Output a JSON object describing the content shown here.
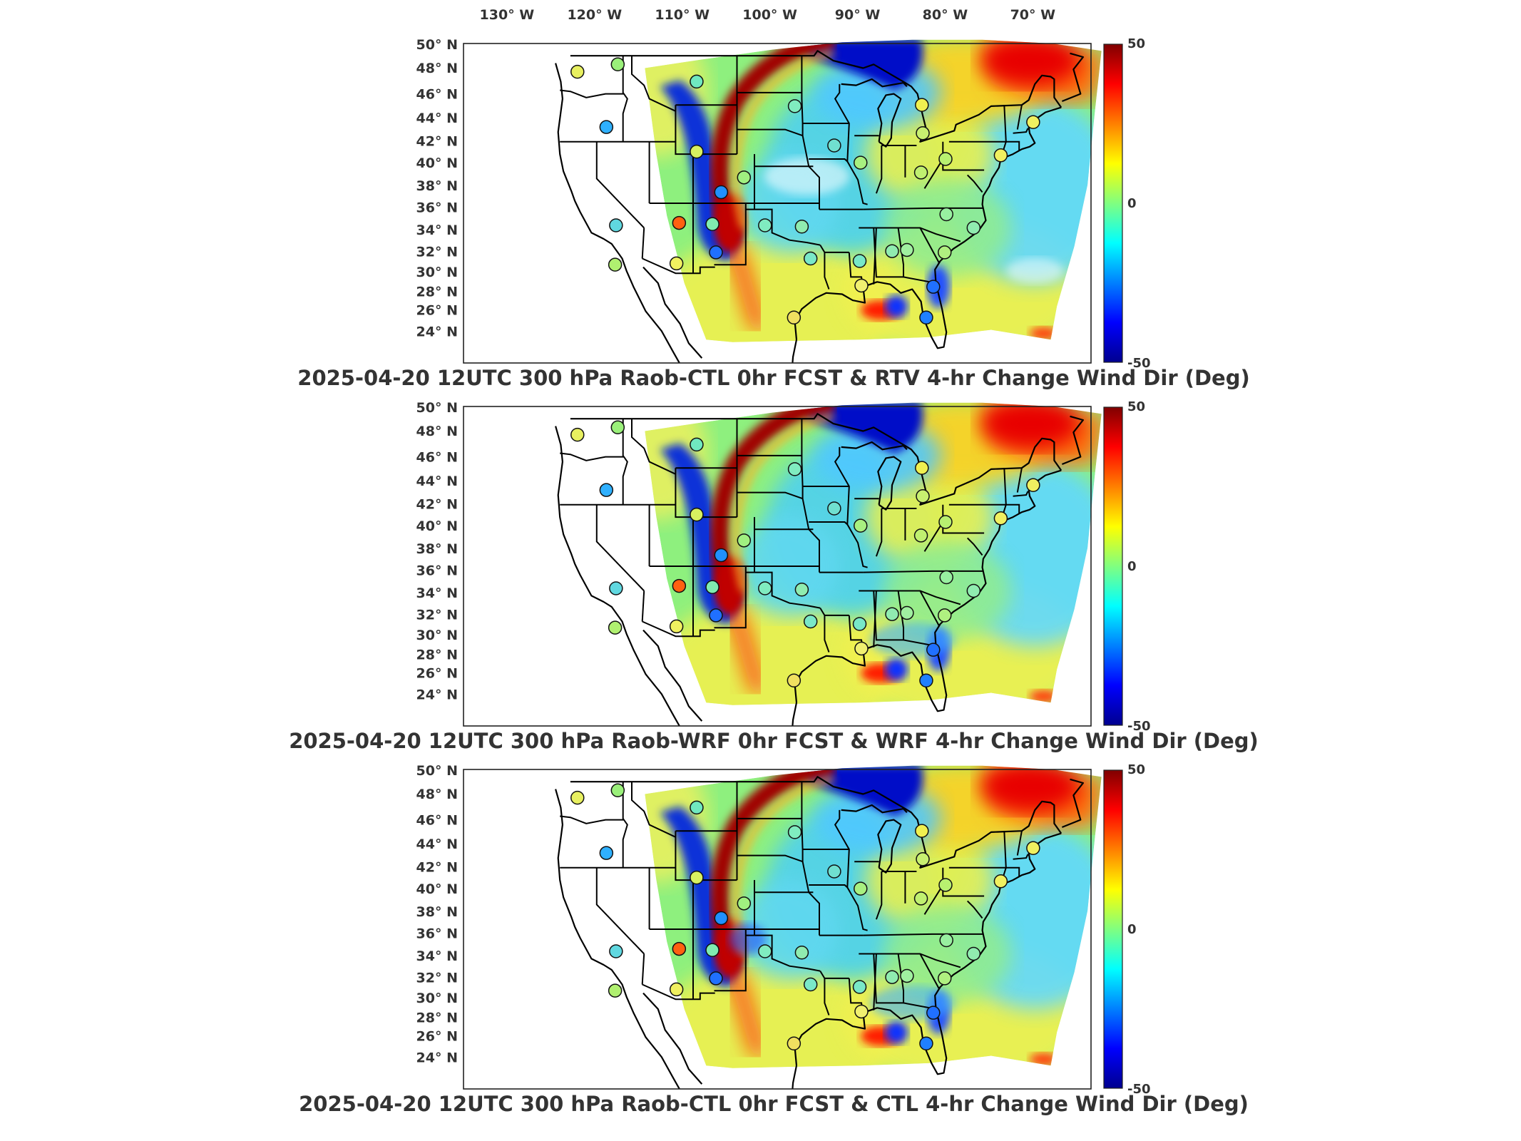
{
  "top_axis": {
    "longitude_labels": [
      "130° W",
      "120° W",
      "110° W",
      "100° W",
      "90° W",
      "80° W",
      "70° W"
    ]
  },
  "left_axis": {
    "latitude_labels": [
      "50° N",
      "48° N",
      "46° N",
      "44° N",
      "42° N",
      "40° N",
      "38° N",
      "36° N",
      "34° N",
      "32° N",
      "30° N",
      "28° N",
      "26° N",
      "24° N"
    ]
  },
  "colorbar": {
    "max_label": "50",
    "mid_label": "0",
    "min_label": "-50",
    "colormap": [
      "#00008f",
      "#0000ff",
      "#0080ff",
      "#00ffff",
      "#80ff80",
      "#ffff00",
      "#ff8000",
      "#ff0000",
      "#800000"
    ]
  },
  "panels": [
    {
      "id": "rtv",
      "title": "2025-04-20 12UTC 300 hPa Raob-CTL 0hr FCST & RTV 4-hr Change Wind Dir (Deg)"
    },
    {
      "id": "wrf",
      "title": "2025-04-20 12UTC 300 hPa Raob-WRF 0hr FCST & WRF 4-hr Change Wind Dir (Deg)"
    },
    {
      "id": "ctl",
      "title": "2025-04-20 12UTC 300 hPa Raob-CTL 0hr FCST & CTL 4-hr Change Wind Dir (Deg)"
    }
  ],
  "stations": [
    {
      "lon": -122.2,
      "lat": 47.7,
      "c": "#e8f060"
    },
    {
      "lon": -117.6,
      "lat": 48.3,
      "c": "#9af07a"
    },
    {
      "lon": -108.6,
      "lat": 46.9,
      "c": "#70e8c0"
    },
    {
      "lon": -118.9,
      "lat": 43.2,
      "c": "#2fb0ff"
    },
    {
      "lon": -108.6,
      "lat": 41.2,
      "c": "#d8f060"
    },
    {
      "lon": -105.8,
      "lat": 37.9,
      "c": "#2090ff"
    },
    {
      "lon": -117.8,
      "lat": 35.2,
      "c": "#60d8e0"
    },
    {
      "lon": -110.6,
      "lat": 35.4,
      "c": "#ff6010"
    },
    {
      "lon": -106.8,
      "lat": 35.3,
      "c": "#80ecb0"
    },
    {
      "lon": -117.9,
      "lat": 32.0,
      "c": "#b0f070"
    },
    {
      "lon": -110.9,
      "lat": 32.1,
      "c": "#f0f060"
    },
    {
      "lon": -106.4,
      "lat": 33.0,
      "c": "#2070ff"
    },
    {
      "lon": -103.2,
      "lat": 39.1,
      "c": "#a0f080"
    },
    {
      "lon": -97.4,
      "lat": 44.9,
      "c": "#80ecc0"
    },
    {
      "lon": -92.9,
      "lat": 41.7,
      "c": "#70e0d0"
    },
    {
      "lon": -89.9,
      "lat": 40.3,
      "c": "#a8f080"
    },
    {
      "lon": -82.9,
      "lat": 45.0,
      "c": "#f0f050"
    },
    {
      "lon": -82.8,
      "lat": 42.7,
      "c": "#c8f070"
    },
    {
      "lon": -80.2,
      "lat": 40.6,
      "c": "#b8f070"
    },
    {
      "lon": -83.0,
      "lat": 39.5,
      "c": "#c0f070"
    },
    {
      "lon": -96.6,
      "lat": 35.1,
      "c": "#90ecb0"
    },
    {
      "lon": -100.8,
      "lat": 35.2,
      "c": "#80ecc0"
    },
    {
      "lon": -95.6,
      "lat": 32.5,
      "c": "#7ae8c8"
    },
    {
      "lon": -90.0,
      "lat": 32.3,
      "c": "#78e8c8"
    },
    {
      "lon": -86.3,
      "lat": 33.1,
      "c": "#90ecb0"
    },
    {
      "lon": -84.6,
      "lat": 33.2,
      "c": "#a0f0a0"
    },
    {
      "lon": -80.1,
      "lat": 36.1,
      "c": "#98f0a0"
    },
    {
      "lon": -77.0,
      "lat": 35.0,
      "c": "#90ecb0"
    },
    {
      "lon": -80.3,
      "lat": 33.0,
      "c": "#b0f080"
    },
    {
      "lon": -81.6,
      "lat": 30.2,
      "c": "#2070ff"
    },
    {
      "lon": -89.8,
      "lat": 30.3,
      "c": "#f0f070"
    },
    {
      "lon": -97.5,
      "lat": 27.7,
      "c": "#f0e060"
    },
    {
      "lon": -82.4,
      "lat": 27.7,
      "c": "#2080ff"
    },
    {
      "lon": -70.2,
      "lat": 43.6,
      "c": "#f0f060"
    },
    {
      "lon": -73.9,
      "lat": 40.9,
      "c": "#f0f060"
    }
  ]
}
